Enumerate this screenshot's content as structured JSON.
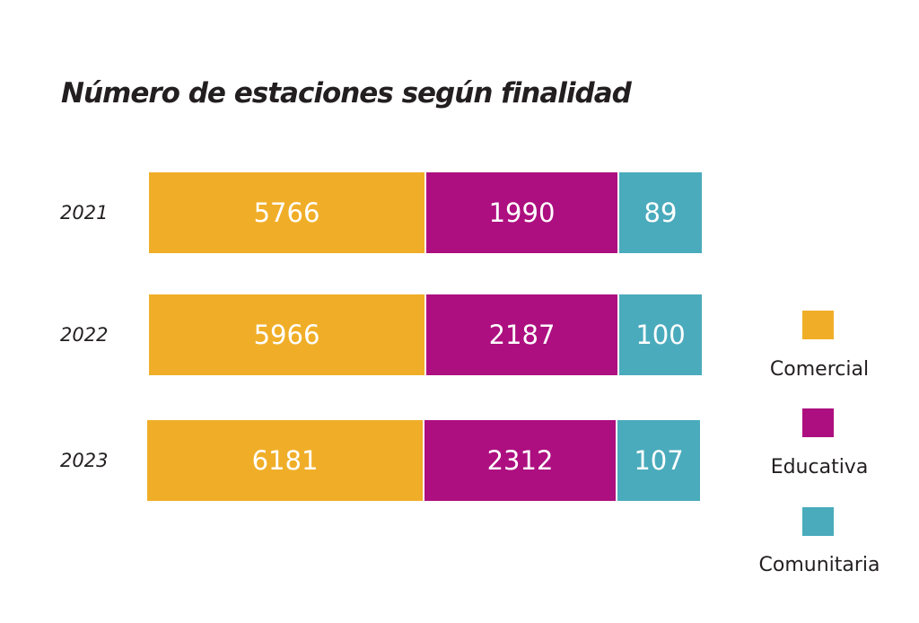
{
  "chart_data": {
    "type": "bar",
    "orientation": "horizontal",
    "stacked": true,
    "title": "Número de estaciones según finalidad",
    "categories": [
      "2021",
      "2022",
      "2023"
    ],
    "series": [
      {
        "name": "Comercial",
        "values": [
          5766,
          5966,
          6181
        ],
        "color": "#f0ae28"
      },
      {
        "name": "Educativa",
        "values": [
          1990,
          2187,
          2312
        ],
        "color": "#ad0f80"
      },
      {
        "name": "Comunitaria",
        "values": [
          89,
          100,
          107
        ],
        "color": "#4aabbc"
      }
    ],
    "legend": "right",
    "grid": false
  }
}
